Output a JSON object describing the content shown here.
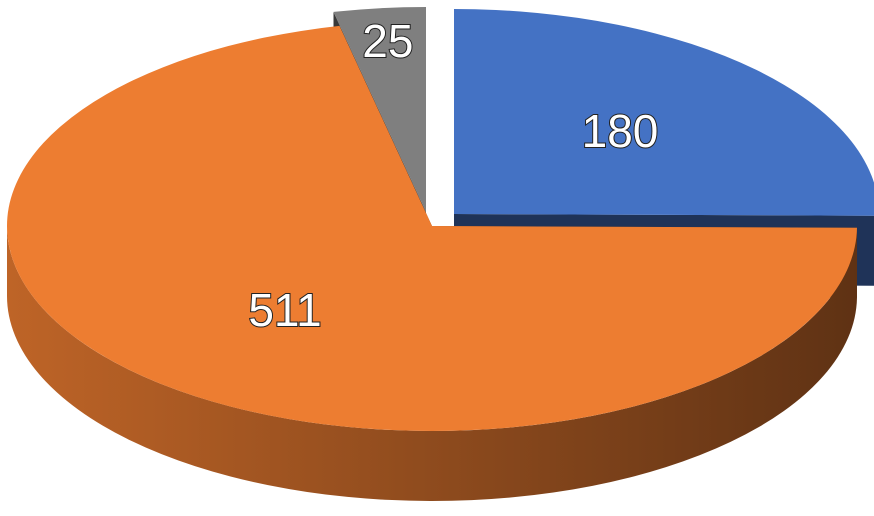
{
  "chart_data": {
    "type": "pie",
    "values": [
      180,
      511,
      25
    ],
    "colors": [
      "#4472c4",
      "#ed7d31",
      "#7f7f7f"
    ]
  }
}
